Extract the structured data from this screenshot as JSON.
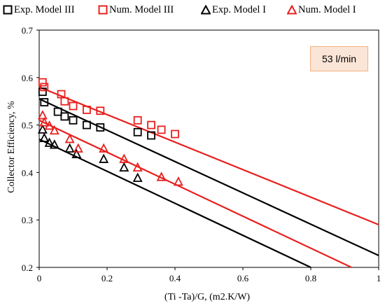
{
  "chart_data": {
    "type": "scatter",
    "xlabel": "(Ti -Ta)/G, (m2.K/W)",
    "ylabel": "Collector Efficiency, %",
    "xlim": [
      0,
      1
    ],
    "ylim": [
      0.2,
      0.7
    ],
    "x_ticks": [
      "0",
      "0.2",
      "0.4",
      "0.6",
      "0.8",
      "1"
    ],
    "y_ticks": [
      "0.2",
      "0.3",
      "0.4",
      "0.5",
      "0.6",
      "0.7"
    ],
    "grid": false,
    "legend_position": "top",
    "annotation": "53 l/min",
    "series": [
      {
        "name": "Exp. Model III",
        "marker": "square",
        "color": "#000000",
        "points": [
          [
            0.01,
            0.57
          ],
          [
            0.015,
            0.548
          ],
          [
            0.055,
            0.528
          ],
          [
            0.075,
            0.518
          ],
          [
            0.1,
            0.51
          ],
          [
            0.14,
            0.5
          ],
          [
            0.18,
            0.495
          ],
          [
            0.29,
            0.485
          ],
          [
            0.33,
            0.478
          ]
        ]
      },
      {
        "name": "Num. Model III",
        "marker": "square",
        "color": "#e8201e",
        "points": [
          [
            0.01,
            0.59
          ],
          [
            0.015,
            0.58
          ],
          [
            0.065,
            0.565
          ],
          [
            0.075,
            0.55
          ],
          [
            0.1,
            0.54
          ],
          [
            0.14,
            0.532
          ],
          [
            0.18,
            0.53
          ],
          [
            0.29,
            0.51
          ],
          [
            0.33,
            0.5
          ],
          [
            0.36,
            0.49
          ],
          [
            0.4,
            0.481
          ]
        ]
      },
      {
        "name": "Exp. Model I",
        "marker": "triangle",
        "color": "#000000",
        "points": [
          [
            0.01,
            0.49
          ],
          [
            0.015,
            0.472
          ],
          [
            0.03,
            0.462
          ],
          [
            0.045,
            0.458
          ],
          [
            0.09,
            0.45
          ],
          [
            0.11,
            0.438
          ],
          [
            0.19,
            0.428
          ],
          [
            0.25,
            0.41
          ],
          [
            0.29,
            0.388
          ]
        ]
      },
      {
        "name": "Num. Model I",
        "marker": "triangle",
        "color": "#e8201e",
        "points": [
          [
            0.01,
            0.52
          ],
          [
            0.015,
            0.505
          ],
          [
            0.03,
            0.498
          ],
          [
            0.045,
            0.488
          ],
          [
            0.09,
            0.47
          ],
          [
            0.115,
            0.45
          ],
          [
            0.19,
            0.45
          ],
          [
            0.25,
            0.428
          ],
          [
            0.29,
            0.41
          ],
          [
            0.36,
            0.39
          ],
          [
            0.41,
            0.38
          ]
        ]
      }
    ],
    "trendlines": [
      {
        "color": "#e8201e",
        "from": [
          0,
          0.58
        ],
        "to": [
          1,
          0.29
        ]
      },
      {
        "color": "#000000",
        "from": [
          0,
          0.555
        ],
        "to": [
          1,
          0.225
        ]
      },
      {
        "color": "#e8201e",
        "from": [
          0,
          0.51
        ],
        "to": [
          0.92,
          0.2
        ]
      },
      {
        "color": "#000000",
        "from": [
          0,
          0.47
        ],
        "to": [
          0.8,
          0.2
        ]
      }
    ]
  }
}
